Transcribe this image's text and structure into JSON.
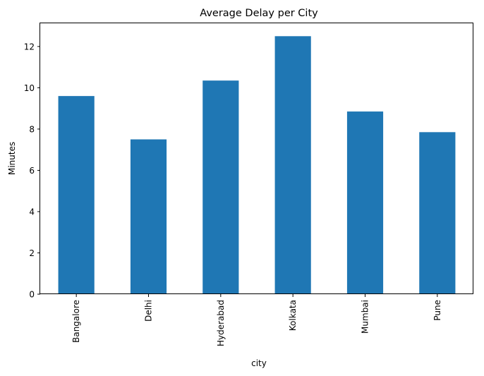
{
  "chart_data": {
    "type": "bar",
    "title": "Average Delay per City",
    "xlabel": "city",
    "ylabel": "Minutes",
    "categories": [
      "Bangalore",
      "Delhi",
      "Hyderabad",
      "Kolkata",
      "Mumbai",
      "Pune"
    ],
    "values": [
      9.6,
      7.5,
      10.35,
      12.5,
      8.85,
      7.85
    ],
    "ylim": [
      0,
      13.125
    ],
    "yticks": [
      0,
      2,
      4,
      6,
      8,
      10,
      12
    ],
    "grid": false,
    "legend": "none",
    "tick_label_rotation": "vertical",
    "bar_color": "#1f77b4"
  }
}
